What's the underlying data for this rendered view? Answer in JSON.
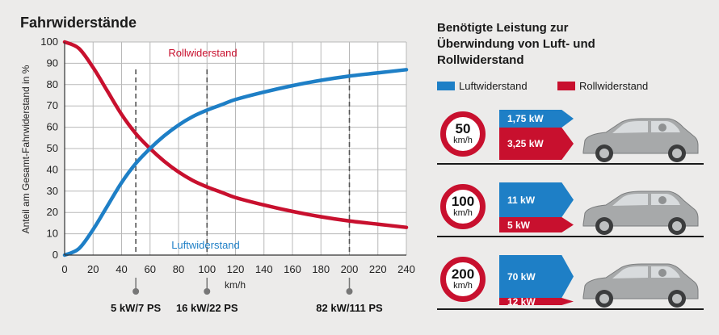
{
  "left_title": "Fahrwiderstände",
  "right_title_lines": [
    "Benötigte Leistung zur",
    "Überwindung von Luft- und",
    "Rollwiderstand"
  ],
  "legend": [
    {
      "label": "Luftwiderstand",
      "color": "#1e7fc6"
    },
    {
      "label": "Rollwiderstand",
      "color": "#c8102e"
    }
  ],
  "power_rows": [
    {
      "speed": "50",
      "unit": "km/h",
      "air_label": "1,75 kW",
      "roll_label": "3,25 kW",
      "air_kw": 1.75,
      "roll_kw": 3.25
    },
    {
      "speed": "100",
      "unit": "km/h",
      "air_label": "11 kW",
      "roll_label": "5 kW",
      "air_kw": 11,
      "roll_kw": 5
    },
    {
      "speed": "200",
      "unit": "km/h",
      "air_label": "70 kW",
      "roll_label": "12 kW",
      "air_kw": 70,
      "roll_kw": 12
    }
  ],
  "chart_data": {
    "type": "line",
    "title": "Fahrwiderstände",
    "xlabel": "km/h",
    "ylabel": "Anteil am Gesamt-Fahrwiderstand in %",
    "xlim": [
      0,
      240
    ],
    "ylim": [
      0,
      100
    ],
    "xticks": [
      0,
      20,
      40,
      60,
      80,
      100,
      120,
      140,
      160,
      180,
      200,
      220,
      240
    ],
    "yticks": [
      0,
      10,
      20,
      30,
      40,
      50,
      60,
      70,
      80,
      90,
      100
    ],
    "grid": true,
    "x": [
      0,
      10,
      20,
      30,
      40,
      50,
      60,
      70,
      80,
      90,
      100,
      110,
      120,
      140,
      160,
      180,
      200,
      220,
      240
    ],
    "series": [
      {
        "name": "Rollwiderstand",
        "color": "#c8102e",
        "values": [
          100,
          97,
          88,
          77,
          66,
          57,
          50,
          44,
          39,
          35,
          32,
          29.5,
          27,
          23.5,
          20.5,
          18,
          16,
          14.5,
          13
        ]
      },
      {
        "name": "Luftwiderstand",
        "color": "#1e7fc6",
        "values": [
          0,
          3,
          12,
          23,
          34,
          43,
          50,
          56,
          61,
          65,
          68,
          70.5,
          73,
          76.5,
          79.5,
          82,
          84,
          85.5,
          87
        ]
      }
    ],
    "markers": [
      {
        "x": 50,
        "label": "5 kW/7 PS"
      },
      {
        "x": 100,
        "label": "16 kW/22 PS"
      },
      {
        "x": 200,
        "label": "82 kW/111 PS"
      }
    ]
  }
}
